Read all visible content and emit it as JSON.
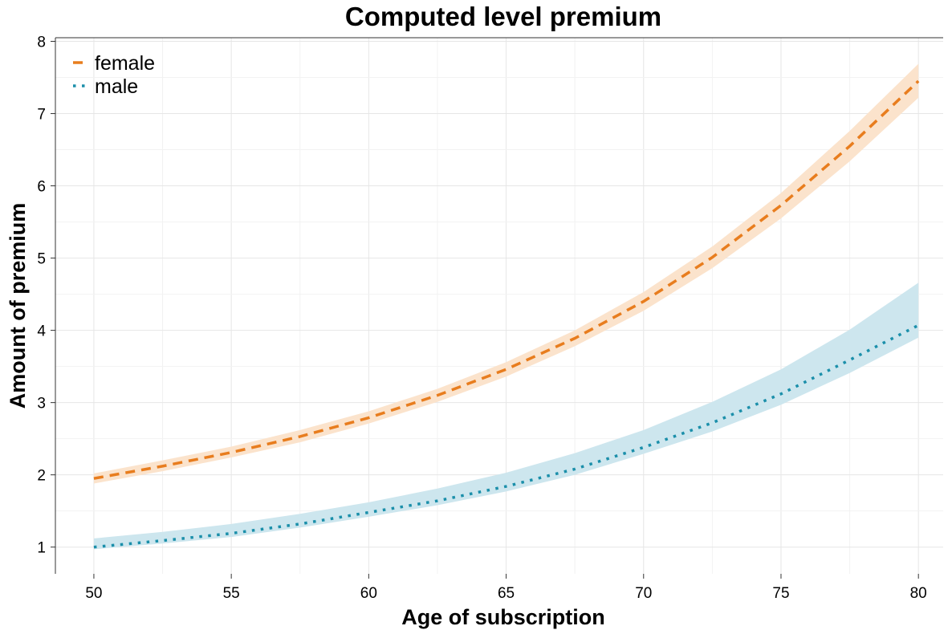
{
  "chart_data": {
    "type": "line",
    "title": "Computed level premium",
    "xlabel": "Age of subscription",
    "ylabel": "Amount of premium",
    "xlim": [
      48.6,
      80.9
    ],
    "ylim": [
      0.63,
      8.05
    ],
    "xticks": [
      50,
      55,
      60,
      65,
      70,
      75,
      80
    ],
    "yticks": [
      1,
      2,
      3,
      4,
      5,
      6,
      7,
      8
    ],
    "grid": true,
    "legend_position": "top-left",
    "x": [
      50,
      52.5,
      55,
      57.5,
      60,
      62.5,
      65,
      67.5,
      70,
      72.5,
      75,
      77.5,
      80
    ],
    "series": [
      {
        "name": "female",
        "line_style": "dashed",
        "color": "#E87D1E",
        "band_color": "#FBE3CC",
        "values": [
          1.95,
          2.12,
          2.31,
          2.53,
          2.79,
          3.1,
          3.46,
          3.89,
          4.4,
          5.01,
          5.73,
          6.55,
          7.45
        ],
        "lower": [
          1.88,
          2.05,
          2.24,
          2.45,
          2.71,
          3.01,
          3.36,
          3.78,
          4.27,
          4.86,
          5.55,
          6.34,
          7.22
        ],
        "upper": [
          2.02,
          2.2,
          2.39,
          2.62,
          2.88,
          3.19,
          3.56,
          4.0,
          4.53,
          5.16,
          5.9,
          6.76,
          7.69
        ]
      },
      {
        "name": "male",
        "line_style": "dotted",
        "color": "#1B8FAA",
        "band_color": "#CDE6EE",
        "values": [
          1.0,
          1.09,
          1.19,
          1.32,
          1.48,
          1.64,
          1.84,
          2.08,
          2.38,
          2.72,
          3.12,
          3.59,
          4.07
        ],
        "lower": [
          0.97,
          1.05,
          1.14,
          1.27,
          1.42,
          1.58,
          1.77,
          2.0,
          2.29,
          2.6,
          2.97,
          3.41,
          3.9
        ],
        "upper": [
          1.12,
          1.21,
          1.32,
          1.46,
          1.62,
          1.81,
          2.03,
          2.3,
          2.62,
          3.01,
          3.46,
          4.01,
          4.66
        ]
      }
    ]
  }
}
